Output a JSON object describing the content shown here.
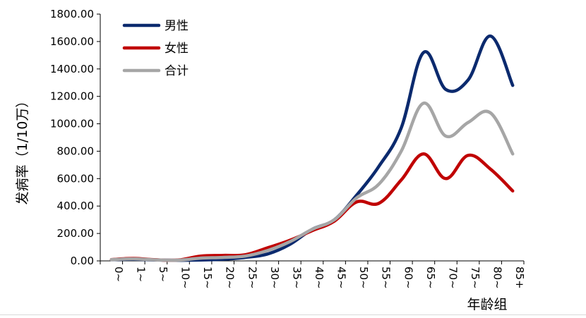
{
  "chart_data": {
    "type": "line",
    "xlabel": "年龄组",
    "ylabel": "发病率（1/10万）",
    "ylim": [
      0,
      1800
    ],
    "yticks": [
      "0.00",
      "200.00",
      "400.00",
      "600.00",
      "800.00",
      "1000.00",
      "1200.00",
      "1400.00",
      "1600.00",
      "1800.00"
    ],
    "legend_position": "top-left",
    "grid": false,
    "categories": [
      "0~",
      "1~",
      "5~",
      "10~",
      "15~",
      "20~",
      "25~",
      "30~",
      "35~",
      "40~",
      "45~",
      "50~",
      "55~",
      "60~",
      "65~",
      "70~",
      "75~",
      "80~",
      "85+"
    ],
    "series": [
      {
        "name": "男性",
        "color": "#0b2a6e",
        "values": [
          8,
          12,
          6,
          4,
          6,
          12,
          25,
          50,
          120,
          230,
          300,
          480,
          690,
          970,
          1520,
          1250,
          1320,
          1640,
          1280
        ]
      },
      {
        "name": "女性",
        "color": "#c00000",
        "values": [
          10,
          18,
          8,
          6,
          35,
          40,
          45,
          95,
          150,
          220,
          290,
          430,
          420,
          590,
          780,
          600,
          770,
          670,
          510
        ]
      },
      {
        "name": "合计",
        "color": "#a6a6a6",
        "values": [
          9,
          15,
          7,
          5,
          20,
          25,
          35,
          75,
          140,
          230,
          300,
          460,
          560,
          800,
          1150,
          910,
          1010,
          1080,
          780
        ]
      }
    ]
  }
}
